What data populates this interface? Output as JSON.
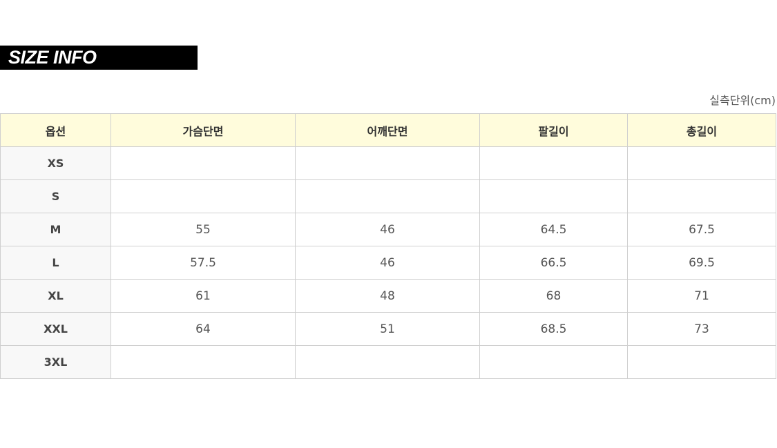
{
  "title": "SIZE INFO",
  "unit_label": "실측단위(cm)",
  "table": {
    "headers": [
      "옵션",
      "가슴단면",
      "어깨단면",
      "팔길이",
      "총길이"
    ],
    "rows": [
      [
        "XS",
        "",
        "",
        "",
        ""
      ],
      [
        "S",
        "",
        "",
        "",
        ""
      ],
      [
        "M",
        "55",
        "46",
        "64.5",
        "67.5"
      ],
      [
        "L",
        "57.5",
        "46",
        "66.5",
        "69.5"
      ],
      [
        "XL",
        "61",
        "48",
        "68",
        "71"
      ],
      [
        "XXL",
        "64",
        "51",
        "68.5",
        "73"
      ],
      [
        "3XL",
        "",
        "",
        "",
        ""
      ]
    ]
  },
  "colors": {
    "header_bg": "#fffcdc",
    "title_bg": "#000000",
    "option_bg": "#f8f8f8"
  }
}
